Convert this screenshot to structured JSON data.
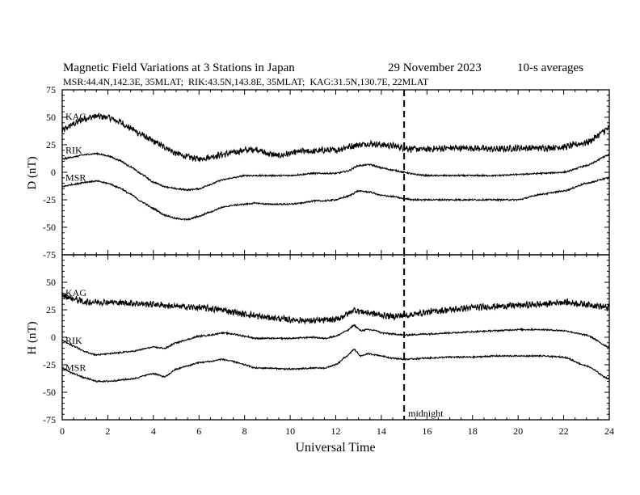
{
  "chart_data": [
    {
      "type": "line",
      "title": "Magnetic Field Variations at 3 Stations in Japan",
      "date": "29 November 2023",
      "averaging": "10-s averages",
      "subtitle": "MSR:44.4N,142.3E, 35MLAT;  RIK:43.5N,143.8E, 35MLAT;  KAG:31.5N,130.7E, 22MLAT",
      "ylabel": "D (nT)",
      "xlabel": "",
      "ylim": [
        -75,
        75
      ],
      "xlim": [
        0,
        24
      ],
      "yticks": [
        75,
        50,
        25,
        0,
        -25,
        -50,
        -75
      ],
      "series": [
        {
          "name": "KAG",
          "color": "#000000",
          "noise": 2.5,
          "points": [
            [
              0,
              38
            ],
            [
              0.5,
              44
            ],
            [
              1,
              49
            ],
            [
              1.5,
              51
            ],
            [
              2,
              50
            ],
            [
              2.5,
              46
            ],
            [
              3,
              40
            ],
            [
              3.5,
              34
            ],
            [
              4,
              28
            ],
            [
              4.5,
              23
            ],
            [
              5,
              17
            ],
            [
              5.5,
              14
            ],
            [
              6,
              12
            ],
            [
              6.5,
              14
            ],
            [
              7,
              16
            ],
            [
              7.5,
              18
            ],
            [
              8,
              20
            ],
            [
              8.5,
              21
            ],
            [
              9,
              17
            ],
            [
              9.5,
              15
            ],
            [
              10,
              17
            ],
            [
              10.5,
              19
            ],
            [
              11,
              19
            ],
            [
              11.5,
              20
            ],
            [
              12,
              20
            ],
            [
              12.5,
              23
            ],
            [
              13,
              25
            ],
            [
              13.5,
              26
            ],
            [
              14,
              25
            ],
            [
              14.5,
              24
            ],
            [
              15,
              22
            ],
            [
              15.5,
              21
            ],
            [
              16,
              21
            ],
            [
              17,
              22
            ],
            [
              18,
              22
            ],
            [
              19,
              21
            ],
            [
              20,
              22
            ],
            [
              21,
              22
            ],
            [
              22,
              23
            ],
            [
              23,
              27
            ],
            [
              24,
              40
            ]
          ]
        },
        {
          "name": "RIK",
          "color": "#000000",
          "noise": 0.6,
          "points": [
            [
              0,
              12
            ],
            [
              0.5,
              14
            ],
            [
              1,
              16
            ],
            [
              1.5,
              17
            ],
            [
              2,
              15
            ],
            [
              2.5,
              11
            ],
            [
              3,
              5
            ],
            [
              3.5,
              -2
            ],
            [
              4,
              -9
            ],
            [
              4.5,
              -13
            ],
            [
              5,
              -15
            ],
            [
              5.5,
              -16
            ],
            [
              6,
              -15
            ],
            [
              6.5,
              -11
            ],
            [
              7,
              -7
            ],
            [
              7.5,
              -5
            ],
            [
              8,
              -3
            ],
            [
              8.5,
              -3
            ],
            [
              9,
              -3
            ],
            [
              9.5,
              -3
            ],
            [
              10,
              -3
            ],
            [
              10.5,
              -2
            ],
            [
              11,
              -1
            ],
            [
              11.5,
              -1
            ],
            [
              12,
              -1
            ],
            [
              12.5,
              1
            ],
            [
              13,
              6
            ],
            [
              13.5,
              7
            ],
            [
              14,
              4
            ],
            [
              14.5,
              2
            ],
            [
              15,
              0
            ],
            [
              15.5,
              -2
            ],
            [
              16,
              -3
            ],
            [
              17,
              -3
            ],
            [
              18,
              -3
            ],
            [
              19,
              -3
            ],
            [
              20,
              -2
            ],
            [
              21,
              -1
            ],
            [
              22,
              0
            ],
            [
              23,
              6
            ],
            [
              24,
              16
            ]
          ]
        },
        {
          "name": "MSR",
          "color": "#000000",
          "noise": 0.6,
          "points": [
            [
              0,
              -13
            ],
            [
              0.5,
              -11
            ],
            [
              1,
              -9
            ],
            [
              1.5,
              -8
            ],
            [
              2,
              -10
            ],
            [
              2.5,
              -14
            ],
            [
              3,
              -20
            ],
            [
              3.5,
              -27
            ],
            [
              4,
              -33
            ],
            [
              4.5,
              -39
            ],
            [
              5,
              -42
            ],
            [
              5.5,
              -43
            ],
            [
              6,
              -40
            ],
            [
              6.5,
              -36
            ],
            [
              7,
              -32
            ],
            [
              7.5,
              -30
            ],
            [
              8,
              -29
            ],
            [
              8.5,
              -28
            ],
            [
              9,
              -29
            ],
            [
              9.5,
              -29
            ],
            [
              10,
              -29
            ],
            [
              10.5,
              -28
            ],
            [
              11,
              -26
            ],
            [
              11.5,
              -26
            ],
            [
              12,
              -25
            ],
            [
              12.5,
              -22
            ],
            [
              13,
              -17
            ],
            [
              13.5,
              -18
            ],
            [
              14,
              -21
            ],
            [
              14.5,
              -22
            ],
            [
              15,
              -24
            ],
            [
              15.5,
              -25
            ],
            [
              16,
              -25
            ],
            [
              17,
              -25
            ],
            [
              18,
              -25
            ],
            [
              19,
              -25
            ],
            [
              20,
              -25
            ],
            [
              21,
              -20
            ],
            [
              22,
              -17
            ],
            [
              23,
              -10
            ],
            [
              24,
              -5
            ]
          ]
        }
      ],
      "annotations": [
        "KAG",
        "RIK",
        "MSR"
      ]
    },
    {
      "type": "line",
      "ylabel": "H (nT)",
      "xlabel": "Universal Time",
      "ylim": [
        -75,
        75
      ],
      "xlim": [
        0,
        24
      ],
      "yticks": [
        50,
        25,
        0,
        -25,
        -50,
        -75
      ],
      "xticks": [
        0,
        2,
        4,
        6,
        8,
        10,
        12,
        14,
        16,
        18,
        20,
        22,
        24
      ],
      "marker": {
        "x": 15,
        "label": "midnight"
      },
      "series": [
        {
          "name": "KAG",
          "color": "#000000",
          "noise": 2.5,
          "points": [
            [
              0,
              38
            ],
            [
              0.5,
              35
            ],
            [
              1,
              32
            ],
            [
              2,
              32
            ],
            [
              3,
              31
            ],
            [
              4,
              30
            ],
            [
              5,
              28
            ],
            [
              6,
              27
            ],
            [
              7,
              25
            ],
            [
              7.5,
              23
            ],
            [
              8,
              21
            ],
            [
              9,
              18
            ],
            [
              10,
              16
            ],
            [
              11,
              15
            ],
            [
              12,
              16
            ],
            [
              12.5,
              21
            ],
            [
              12.8,
              25
            ],
            [
              13.2,
              23
            ],
            [
              13.5,
              22
            ],
            [
              14,
              20
            ],
            [
              14.5,
              19
            ],
            [
              15,
              20
            ],
            [
              15.5,
              21
            ],
            [
              16,
              23
            ],
            [
              17,
              25
            ],
            [
              18,
              27
            ],
            [
              19,
              28
            ],
            [
              20,
              29
            ],
            [
              21,
              30
            ],
            [
              22,
              32
            ],
            [
              23,
              30
            ],
            [
              24,
              27
            ]
          ]
        },
        {
          "name": "RIK",
          "color": "#000000",
          "noise": 0.6,
          "points": [
            [
              0,
              -3
            ],
            [
              0.5,
              -8
            ],
            [
              1,
              -13
            ],
            [
              1.5,
              -16
            ],
            [
              2,
              -15
            ],
            [
              3,
              -13
            ],
            [
              4,
              -9
            ],
            [
              4.5,
              -10
            ],
            [
              5,
              -5
            ],
            [
              5.5,
              -2
            ],
            [
              6,
              1
            ],
            [
              6.5,
              2
            ],
            [
              7,
              4
            ],
            [
              7.5,
              3
            ],
            [
              8,
              1
            ],
            [
              8.5,
              -1
            ],
            [
              9,
              -1
            ],
            [
              10,
              -1
            ],
            [
              11,
              0
            ],
            [
              11.5,
              -1
            ],
            [
              12,
              1
            ],
            [
              12.5,
              6
            ],
            [
              12.8,
              11
            ],
            [
              13.1,
              6
            ],
            [
              13.4,
              7
            ],
            [
              13.8,
              6
            ],
            [
              14,
              4
            ],
            [
              14.5,
              3
            ],
            [
              15,
              2
            ],
            [
              16,
              3
            ],
            [
              17,
              4
            ],
            [
              18,
              5
            ],
            [
              19,
              6
            ],
            [
              20,
              7
            ],
            [
              21,
              7
            ],
            [
              22,
              6
            ],
            [
              23,
              2
            ],
            [
              24,
              -9
            ]
          ]
        },
        {
          "name": "MSR",
          "color": "#000000",
          "noise": 0.6,
          "points": [
            [
              0,
              -28
            ],
            [
              0.5,
              -33
            ],
            [
              1,
              -37
            ],
            [
              1.5,
              -40
            ],
            [
              2,
              -40
            ],
            [
              3,
              -38
            ],
            [
              4,
              -33
            ],
            [
              4.5,
              -36
            ],
            [
              5,
              -29
            ],
            [
              5.5,
              -26
            ],
            [
              6,
              -23
            ],
            [
              6.5,
              -22
            ],
            [
              7,
              -20
            ],
            [
              7.5,
              -22
            ],
            [
              8,
              -25
            ],
            [
              8.5,
              -28
            ],
            [
              9,
              -28
            ],
            [
              10,
              -29
            ],
            [
              11,
              -28
            ],
            [
              11.5,
              -28
            ],
            [
              12,
              -25
            ],
            [
              12.5,
              -17
            ],
            [
              12.8,
              -11
            ],
            [
              13.1,
              -17
            ],
            [
              13.4,
              -15
            ],
            [
              13.8,
              -16
            ],
            [
              14,
              -17
            ],
            [
              14.5,
              -19
            ],
            [
              15,
              -20
            ],
            [
              16,
              -19
            ],
            [
              17,
              -18
            ],
            [
              18,
              -18
            ],
            [
              19,
              -17
            ],
            [
              20,
              -17
            ],
            [
              21,
              -17
            ],
            [
              22,
              -18
            ],
            [
              23,
              -26
            ],
            [
              24,
              -38
            ]
          ]
        }
      ],
      "annotations": [
        "KAG",
        "RIK",
        "MSR"
      ]
    }
  ]
}
